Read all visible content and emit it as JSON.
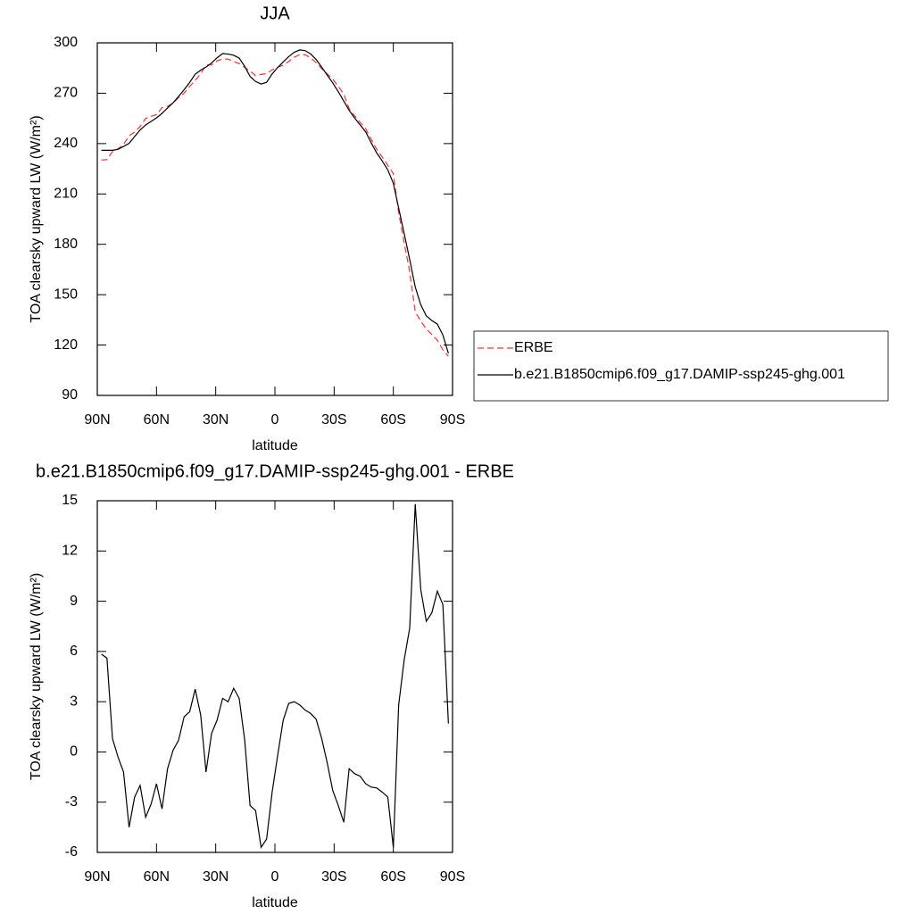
{
  "chart_data": [
    {
      "type": "line",
      "title": "JJA",
      "xlabel": "latitude",
      "ylabel": "TOA clearsky upward LW (W/m²)",
      "x": [
        87.9,
        85.1,
        82.3,
        79.5,
        76.7,
        73.9,
        71.1,
        68.3,
        65.5,
        62.7,
        60.0,
        57.2,
        54.4,
        51.6,
        48.8,
        46.0,
        43.2,
        40.4,
        37.6,
        34.9,
        32.1,
        29.3,
        26.5,
        23.7,
        20.9,
        18.1,
        15.3,
        12.6,
        9.8,
        7.0,
        4.2,
        1.4,
        -1.4,
        -4.2,
        -7.0,
        -9.8,
        -12.6,
        -15.3,
        -18.1,
        -20.9,
        -23.7,
        -26.5,
        -29.3,
        -32.1,
        -34.9,
        -37.6,
        -40.4,
        -43.2,
        -46.0,
        -48.8,
        -51.6,
        -54.4,
        -57.2,
        -60.0,
        -62.7,
        -65.5,
        -68.3,
        -71.1,
        -73.9,
        -76.7,
        -79.5,
        -82.3,
        -85.1,
        -87.9
      ],
      "series": [
        {
          "name": "ERBE",
          "color": "#ff3030",
          "linestyle": "dashed",
          "values": [
            230.2,
            230.4,
            235.2,
            236.9,
            239.5,
            244.6,
            246.9,
            250.1,
            255,
            256.3,
            257.2,
            261.4,
            262.2,
            264.2,
            267.4,
            270,
            274,
            277.6,
            281.5,
            286.8,
            286.9,
            289.2,
            290.4,
            290.3,
            288.8,
            287.7,
            285.3,
            283.2,
            280.5,
            281.2,
            281.7,
            283.9,
            285.5,
            286.7,
            288.9,
            291.4,
            293,
            292.9,
            291.1,
            288.2,
            284.7,
            281.5,
            278.4,
            274.1,
            269.5,
            260.8,
            256.5,
            252.6,
            248.9,
            242.5,
            236.6,
            232,
            227,
            222.1,
            198.8,
            180.9,
            163.5,
            139.8,
            134.3,
            129.6,
            126.3,
            122.9,
            117.2,
            113.3
          ]
        },
        {
          "name": "b.e21.B1850cmip6.f09_g17.DAMIP-ssp245-ghg.001",
          "color": "#000000",
          "linestyle": "solid",
          "values": [
            236,
            236,
            236,
            236.6,
            238.3,
            240.1,
            244.2,
            248.1,
            251.1,
            253.2,
            255.3,
            258,
            261.2,
            264.3,
            268.1,
            272.1,
            276.4,
            281.3,
            283.7,
            285.6,
            288,
            291.1,
            293.6,
            293.3,
            292.6,
            290.9,
            286,
            280,
            277,
            275.5,
            276.5,
            281.5,
            285.3,
            288.6,
            291.8,
            294.4,
            295.8,
            295.4,
            293.4,
            290.1,
            285.5,
            280.8,
            276.1,
            270.9,
            265.3,
            259.8,
            255.2,
            251.1,
            247,
            240.4,
            234.4,
            229.6,
            224.3,
            216.4,
            201.6,
            186.4,
            170.9,
            154.6,
            144,
            137.4,
            134.6,
            132.5,
            126,
            115
          ]
        }
      ],
      "xlim": [
        90,
        -90
      ],
      "xticks": [
        {
          "value": 90,
          "label": "90N"
        },
        {
          "value": 60,
          "label": "60N"
        },
        {
          "value": 30,
          "label": "30N"
        },
        0,
        {
          "value": -30,
          "label": "30S"
        },
        {
          "value": -60,
          "label": "60S"
        },
        {
          "value": -90,
          "label": "90S"
        }
      ],
      "ylim": [
        90,
        300
      ],
      "yticks": [
        90,
        120,
        150,
        180,
        210,
        240,
        270,
        300
      ],
      "legend": "right"
    },
    {
      "type": "line",
      "title": "b.e21.B1850cmip6.f09_g17.DAMIP-ssp245-ghg.001 - ERBE",
      "xlabel": "latitude",
      "ylabel": "TOA clearsky upward LW (W/m²)",
      "x": [
        87.9,
        85.1,
        82.3,
        79.5,
        76.7,
        73.9,
        71.1,
        68.3,
        65.5,
        62.7,
        60.0,
        57.2,
        54.4,
        51.6,
        48.8,
        46.0,
        43.2,
        40.4,
        37.6,
        34.9,
        32.1,
        29.3,
        26.5,
        23.7,
        20.9,
        18.1,
        15.3,
        12.6,
        9.8,
        7.0,
        4.2,
        1.4,
        -1.4,
        -4.2,
        -7.0,
        -9.8,
        -12.6,
        -15.3,
        -18.1,
        -20.9,
        -23.7,
        -26.5,
        -29.3,
        -32.1,
        -34.9,
        -37.6,
        -40.4,
        -43.2,
        -46.0,
        -48.8,
        -51.6,
        -54.4,
        -57.2,
        -60.0,
        -62.7,
        -65.5,
        -68.3,
        -71.1,
        -73.9,
        -76.7,
        -79.5,
        -82.3,
        -85.1,
        -87.9
      ],
      "color": "#000000",
      "values": [
        5.84,
        5.6,
        0.8,
        -0.3,
        -1.2,
        -4.5,
        -2.7,
        -2.0,
        -3.9,
        -3.1,
        -1.9,
        -3.4,
        -1.0,
        0.1,
        0.7,
        2.1,
        2.4,
        3.75,
        2.2,
        -1.2,
        1.1,
        1.9,
        3.2,
        3.0,
        3.8,
        3.2,
        0.7,
        -3.2,
        -3.5,
        -5.7,
        -5.2,
        -2.4,
        -0.2,
        1.9,
        2.9,
        3.0,
        2.8,
        2.5,
        2.3,
        1.95,
        0.8,
        -0.65,
        -2.3,
        -3.2,
        -4.2,
        -1.0,
        -1.3,
        -1.45,
        -1.9,
        -2.1,
        -2.15,
        -2.4,
        -2.7,
        -5.7,
        2.8,
        5.5,
        7.4,
        14.8,
        9.7,
        7.8,
        8.3,
        9.6,
        8.8,
        1.7
      ],
      "xlim": [
        90,
        -90
      ],
      "xticks": [
        {
          "value": 90,
          "label": "90N"
        },
        {
          "value": 60,
          "label": "60N"
        },
        {
          "value": 30,
          "label": "30N"
        },
        0,
        {
          "value": -30,
          "label": "30S"
        },
        {
          "value": -60,
          "label": "60S"
        },
        {
          "value": -90,
          "label": "90S"
        }
      ],
      "ylim": [
        -6,
        15
      ],
      "yticks": [
        -6,
        -3,
        0,
        3,
        6,
        9,
        12,
        15
      ]
    }
  ]
}
